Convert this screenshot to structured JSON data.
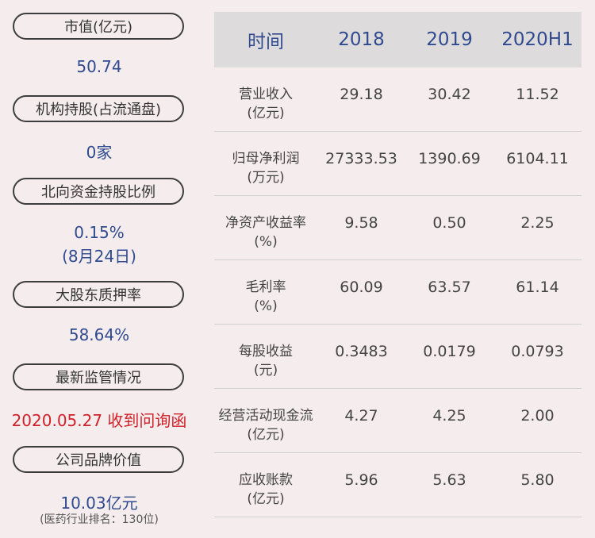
{
  "left": {
    "items": [
      {
        "label": "市值(亿元)",
        "value": "50.74"
      },
      {
        "label": "机构持股(占流通盘)",
        "value": "0家"
      },
      {
        "label": "北向资金持股比例",
        "value_line1": "0.15%",
        "value_line2": "(8月24日)"
      },
      {
        "label": "大股东质押率",
        "value": "58.64%"
      },
      {
        "label": "最新监管情况",
        "value": "2020.05.27 收到问询函"
      },
      {
        "label": "公司品牌价值",
        "value": "10.03亿元",
        "note": "(医药行业排名：130位)"
      }
    ]
  },
  "table": {
    "headers": [
      "时间",
      "2018",
      "2019",
      "2020H1"
    ],
    "rows": [
      {
        "label1": "营业收入",
        "label2": "(亿元)",
        "values": [
          "29.18",
          "30.42",
          "11.52"
        ]
      },
      {
        "label1": "归母净利润",
        "label2": "(万元)",
        "values": [
          "27333.53",
          "1390.69",
          "6104.11"
        ]
      },
      {
        "label1": "净资产收益率",
        "label2": "(%)",
        "values": [
          "9.58",
          "0.50",
          "2.25"
        ]
      },
      {
        "label1": "毛利率",
        "label2": "(%)",
        "values": [
          "60.09",
          "63.57",
          "61.14"
        ]
      },
      {
        "label1": "每股收益",
        "label2": "(元)",
        "values": [
          "0.3483",
          "0.0179",
          "0.0793"
        ]
      },
      {
        "label1": "经营活动现金流",
        "label2": "(亿元)",
        "values": [
          "4.27",
          "4.25",
          "2.00"
        ]
      },
      {
        "label1": "应收账款",
        "label2": "(亿元)",
        "values": [
          "5.96",
          "5.63",
          "5.80"
        ]
      }
    ]
  },
  "colors": {
    "background": "#f5eded",
    "header_bg": "#dedbdc",
    "accent_blue": "#2f4a8f",
    "alert_red": "#d0202a"
  }
}
